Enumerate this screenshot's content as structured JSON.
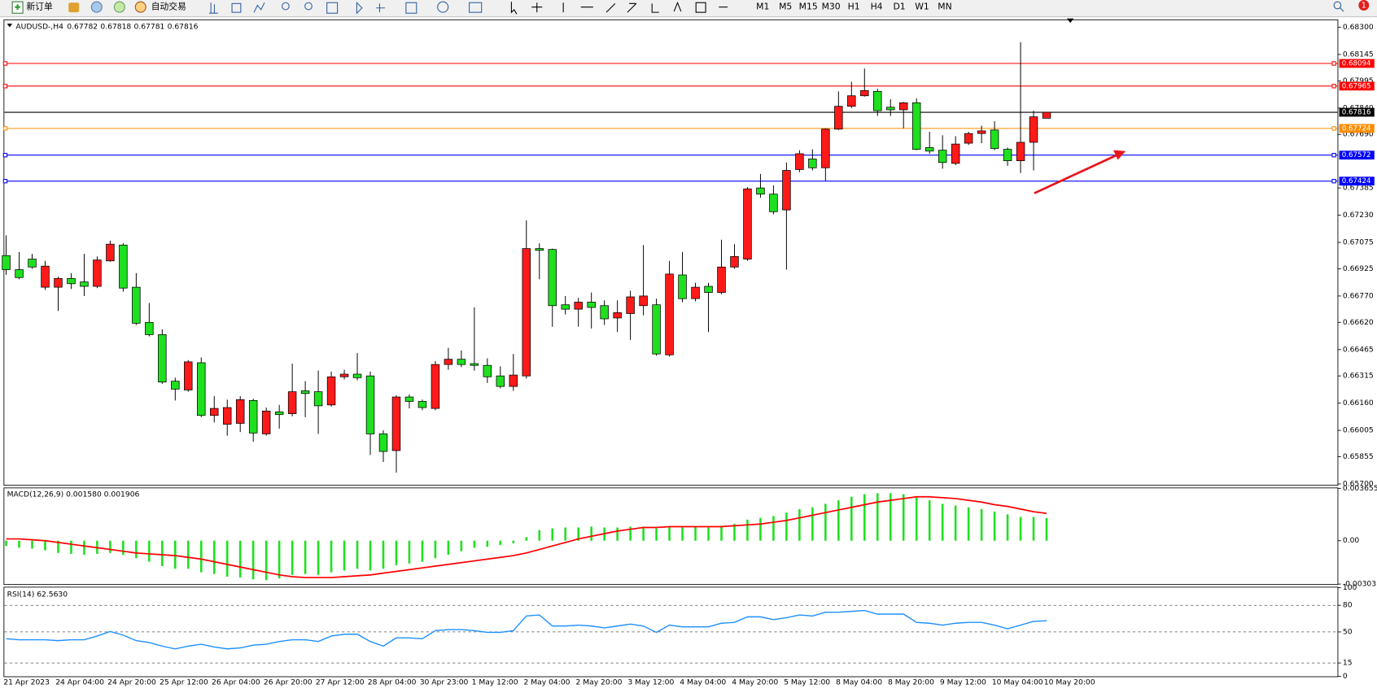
{
  "toolbar": {
    "new_order": "新订单",
    "auto_trading": "自动交易",
    "timeframes": [
      "M1",
      "M5",
      "M15",
      "M30",
      "H1",
      "H4",
      "D1",
      "W1",
      "MN"
    ],
    "notifications": 1
  },
  "chart_data": [
    {
      "type": "candlestick",
      "symbol": "AUDUSD-,H4",
      "up_color": "#ff1a1a",
      "down_color": "#1fe01f",
      "categories": [
        "21 Apr 2023",
        null,
        null,
        null,
        "24 Apr 04:00",
        null,
        null,
        null,
        "24 Apr 20:00",
        null,
        null,
        null,
        "25 Apr 12:00",
        null,
        null,
        null,
        "26 Apr 04:00",
        null,
        null,
        null,
        "26 Apr 20:00",
        null,
        null,
        null,
        "27 Apr 12:00",
        null,
        null,
        null,
        "28 Apr 04:00",
        null,
        null,
        null,
        "30 Apr 23:00",
        null,
        null,
        null,
        "1 May 12:00",
        null,
        null,
        null,
        "2 May 04:00",
        null,
        null,
        null,
        "2 May 20:00",
        null,
        null,
        null,
        "3 May 12:00",
        null,
        null,
        null,
        "4 May 04:00",
        null,
        null,
        null,
        "4 May 20:00",
        null,
        null,
        null,
        "5 May 12:00",
        null,
        null,
        null,
        "8 May 04:00",
        null,
        null,
        null,
        "8 May 20:00",
        null,
        null,
        null,
        "9 May 12:00",
        null,
        null,
        null,
        "10 May 04:00",
        null,
        null,
        null,
        "10 May 20:00"
      ],
      "open": [
        0.67,
        0.6692,
        0.6698,
        0.6682,
        0.6682,
        0.6687,
        0.6685,
        0.66825,
        0.6697,
        0.6706,
        0.6682,
        0.6662,
        0.6655,
        0.66285,
        0.66235,
        0.6639,
        0.6609,
        0.6604,
        0.66045,
        0.66175,
        0.65985,
        0.6611,
        0.661,
        0.6623,
        0.66225,
        0.6615,
        0.6631,
        0.66325,
        0.66315,
        0.65985,
        0.6589,
        0.66195,
        0.6617,
        0.6613,
        0.6638,
        0.6641,
        0.66385,
        0.66375,
        0.66315,
        0.66255,
        0.66315,
        0.6704,
        0.67035,
        0.6672,
        0.66695,
        0.66735,
        0.66715,
        0.66645,
        0.6667,
        0.66715,
        0.6672,
        0.66435,
        0.6689,
        0.66755,
        0.66825,
        0.6679,
        0.66935,
        0.6698,
        0.67385,
        0.6735,
        0.6726,
        0.6749,
        0.6755,
        0.675,
        0.6772,
        0.6785,
        0.6791,
        0.67935,
        0.67845,
        0.6783,
        0.6787,
        0.67615,
        0.676,
        0.67525,
        0.6764,
        0.67695,
        0.67715,
        0.67605,
        0.6754,
        0.67645,
        0.67782
      ],
      "high": [
        0.67115,
        0.6702,
        0.6701,
        0.6697,
        0.6688,
        0.669,
        0.6701,
        0.66995,
        0.67085,
        0.6707,
        0.669,
        0.6673,
        0.6658,
        0.66305,
        0.66405,
        0.6642,
        0.662,
        0.6618,
        0.662,
        0.66185,
        0.66135,
        0.6615,
        0.66385,
        0.66285,
        0.66345,
        0.6634,
        0.6635,
        0.66445,
        0.6634,
        0.66005,
        0.66205,
        0.6621,
        0.6618,
        0.664,
        0.66475,
        0.6646,
        0.66705,
        0.66415,
        0.6637,
        0.6644,
        0.672,
        0.6707,
        0.6704,
        0.6677,
        0.6676,
        0.6679,
        0.66745,
        0.66745,
        0.668,
        0.6706,
        0.66755,
        0.6697,
        0.6702,
        0.66845,
        0.66845,
        0.6709,
        0.67065,
        0.6739,
        0.67465,
        0.674,
        0.6753,
        0.676,
        0.67605,
        0.67725,
        0.67935,
        0.6799,
        0.68065,
        0.6795,
        0.6789,
        0.67875,
        0.67895,
        0.67705,
        0.67685,
        0.6768,
        0.67705,
        0.6774,
        0.67765,
        0.67615,
        0.68215,
        0.67825,
        0.67818
      ],
      "low": [
        0.6689,
        0.66865,
        0.66925,
        0.66805,
        0.66685,
        0.6681,
        0.6677,
        0.66815,
        0.66965,
        0.66795,
        0.66605,
        0.6654,
        0.6627,
        0.66175,
        0.66225,
        0.6608,
        0.6605,
        0.65975,
        0.65995,
        0.6594,
        0.65975,
        0.66015,
        0.66085,
        0.6608,
        0.65985,
        0.6614,
        0.66295,
        0.6629,
        0.65865,
        0.65825,
        0.65765,
        0.6613,
        0.6612,
        0.6612,
        0.6635,
        0.66365,
        0.66345,
        0.66275,
        0.66245,
        0.6623,
        0.663,
        0.66865,
        0.66595,
        0.66665,
        0.66595,
        0.66585,
        0.66605,
        0.66565,
        0.6652,
        0.6666,
        0.6643,
        0.66425,
        0.66735,
        0.6674,
        0.66565,
        0.6678,
        0.66925,
        0.6697,
        0.6733,
        0.67235,
        0.6692,
        0.67475,
        0.67485,
        0.67425,
        0.67715,
        0.6784,
        0.67905,
        0.67795,
        0.67795,
        0.67725,
        0.676,
        0.6758,
        0.67495,
        0.67515,
        0.6763,
        0.6764,
        0.676,
        0.6751,
        0.6747,
        0.67485,
        0.67781
      ],
      "close": [
        0.6692,
        0.66875,
        0.66935,
        0.6694,
        0.6687,
        0.6684,
        0.66825,
        0.66975,
        0.67065,
        0.66815,
        0.66615,
        0.6655,
        0.6628,
        0.6624,
        0.66395,
        0.6609,
        0.6613,
        0.66135,
        0.6618,
        0.6599,
        0.66115,
        0.66095,
        0.66225,
        0.66215,
        0.66145,
        0.6631,
        0.66325,
        0.66305,
        0.65985,
        0.65885,
        0.66195,
        0.6617,
        0.66135,
        0.6638,
        0.6641,
        0.6638,
        0.66375,
        0.6631,
        0.66255,
        0.6632,
        0.6704,
        0.6703,
        0.66715,
        0.66695,
        0.66735,
        0.66705,
        0.6664,
        0.66675,
        0.66765,
        0.6677,
        0.6644,
        0.66895,
        0.66755,
        0.6682,
        0.6679,
        0.66935,
        0.66995,
        0.6738,
        0.6735,
        0.6725,
        0.67485,
        0.6758,
        0.675,
        0.6772,
        0.6785,
        0.6791,
        0.6794,
        0.67825,
        0.6783,
        0.6787,
        0.67605,
        0.67595,
        0.6753,
        0.67635,
        0.67695,
        0.6771,
        0.6761,
        0.6754,
        0.67645,
        0.6779,
        0.67816
      ],
      "lines": [
        {
          "value": 0.68094,
          "color": "#ff0000"
        },
        {
          "value": 0.67965,
          "color": "#ff0000"
        },
        {
          "value": 0.67816,
          "color": "#000000"
        },
        {
          "value": 0.67724,
          "color": "#ff8c00"
        },
        {
          "value": 0.67572,
          "color": "#0000ff"
        },
        {
          "value": 0.67424,
          "color": "#0000ff"
        }
      ],
      "ylim": [
        0.65695,
        0.68345
      ],
      "yticks": [
        {
          "value": 0.683,
          "label": "0.68300"
        },
        0.68145,
        0.67995,
        {
          "value": 0.6784,
          "label": "0.67840"
        },
        {
          "value": 0.6769,
          "label": "0.67690"
        },
        0.67385,
        {
          "value": 0.6723,
          "label": "0.67230"
        },
        0.67075,
        0.66925,
        {
          "value": 0.6677,
          "label": "0.66770"
        },
        {
          "value": 0.6662,
          "label": "0.66620"
        },
        0.66465,
        0.66315,
        {
          "value": 0.6616,
          "label": "0.66160"
        },
        0.66005,
        0.65855,
        {
          "value": 0.657,
          "label": "0.65700"
        }
      ]
    },
    {
      "type": "macd",
      "header": "MACD(12,26,9) 0.001580 0.001906",
      "histogram": {
        "color": "#1fe01f",
        "values": [
          -0.000368,
          -0.00049,
          -0.000552,
          -0.000674,
          -0.000858,
          -0.00092,
          -0.000981,
          -0.00092,
          -0.000858,
          -0.000981,
          -0.001226,
          -0.001471,
          -0.001778,
          -0.001962,
          -0.001962,
          -0.002207,
          -0.002329,
          -0.002513,
          -0.002575,
          -0.002697,
          -0.002759,
          -0.002636,
          -0.002391,
          -0.002329,
          -0.002391,
          -0.002207,
          -0.002084,
          -0.001962,
          -0.002084,
          -0.001962,
          -0.001716,
          -0.001594,
          -0.001471,
          -0.001226,
          -0.000981,
          -0.000736,
          -0.00049,
          -0.000429,
          -0.000307,
          -0.000184,
          0.000245,
          0.000736,
          0.000858,
          0.00092,
          0.00092,
          0.000981,
          0.00092,
          0.00092,
          0.000981,
          0.000981,
          0.000858,
          0.000981,
          0.000981,
          0.000981,
          0.00092,
          0.001042,
          0.001165,
          0.001471,
          0.001594,
          0.001716,
          0.001962,
          0.002207,
          0.002329,
          0.002575,
          0.00282,
          0.003065,
          0.003249,
          0.00331,
          0.00331,
          0.003249,
          0.003065,
          0.00282,
          0.002575,
          0.002452,
          0.002329,
          0.002207,
          0.002023,
          0.001839,
          0.001655,
          0.001655,
          0.00158
        ]
      },
      "signal": {
        "color": "#ff0000",
        "values": [
          0.000123,
          0.000123,
          6.1e-05,
          0,
          -0.000123,
          -0.000245,
          -0.000368,
          -0.00049,
          -0.000613,
          -0.000736,
          -0.000858,
          -0.00092,
          -0.000981,
          -0.001042,
          -0.001165,
          -0.001287,
          -0.001471,
          -0.001655,
          -0.001839,
          -0.002023,
          -0.002207,
          -0.002391,
          -0.002513,
          -0.002575,
          -0.002575,
          -0.002575,
          -0.002513,
          -0.002452,
          -0.002391,
          -0.002268,
          -0.002146,
          -0.002023,
          -0.0019,
          -0.001778,
          -0.001655,
          -0.001533,
          -0.00141,
          -0.001287,
          -0.001165,
          -0.001042,
          -0.000858,
          -0.000613,
          -0.000368,
          -0.000123,
          0.000123,
          0.000307,
          0.00049,
          0.000674,
          0.000797,
          0.00092,
          0.00092,
          0.000981,
          0.000981,
          0.000981,
          0.000981,
          0.000981,
          0.001042,
          0.001103,
          0.001165,
          0.001287,
          0.00141,
          0.001594,
          0.001778,
          0.001962,
          0.002146,
          0.002329,
          0.002513,
          0.002697,
          0.00282,
          0.002942,
          0.003065,
          0.003065,
          0.003004,
          0.002942,
          0.00282,
          0.002697,
          0.002513,
          0.002391,
          0.002207,
          0.002023,
          0.001906
        ]
      },
      "ylim": [
        -0.00303,
        0.003655
      ],
      "yticks": [
        0.003655,
        {
          "value": 0,
          "label": "0.00"
        },
        -0.00303
      ]
    },
    {
      "type": "rsi",
      "header": "RSI(14) 62.5630",
      "color": "#1e90ff",
      "values": [
        42.3,
        41.2,
        41.2,
        41.2,
        40.2,
        41.2,
        41.2,
        45.4,
        50.5,
        46.4,
        40.2,
        38.1,
        34.0,
        30.9,
        34.0,
        36.1,
        33.0,
        30.9,
        32.0,
        35.1,
        36.1,
        39.2,
        41.2,
        41.2,
        39.2,
        45.4,
        47.4,
        47.4,
        39.2,
        34.0,
        43.3,
        43.3,
        42.3,
        51.5,
        52.6,
        52.6,
        51.5,
        49.5,
        49.5,
        51.5,
        68.0,
        69.1,
        56.7,
        56.7,
        57.7,
        56.7,
        54.6,
        56.7,
        58.8,
        56.7,
        49.5,
        57.7,
        55.7,
        55.7,
        55.7,
        59.8,
        60.8,
        67.0,
        67.0,
        63.9,
        66.0,
        69.1,
        68.0,
        72.2,
        72.2,
        73.2,
        74.2,
        70.1,
        70.1,
        70.1,
        60.8,
        59.8,
        57.7,
        59.8,
        60.8,
        60.8,
        57.7,
        53.6,
        57.7,
        61.9,
        62.563
      ],
      "ylim": [
        0,
        100
      ],
      "yticks": [
        100,
        80,
        50,
        15,
        0
      ]
    }
  ]
}
